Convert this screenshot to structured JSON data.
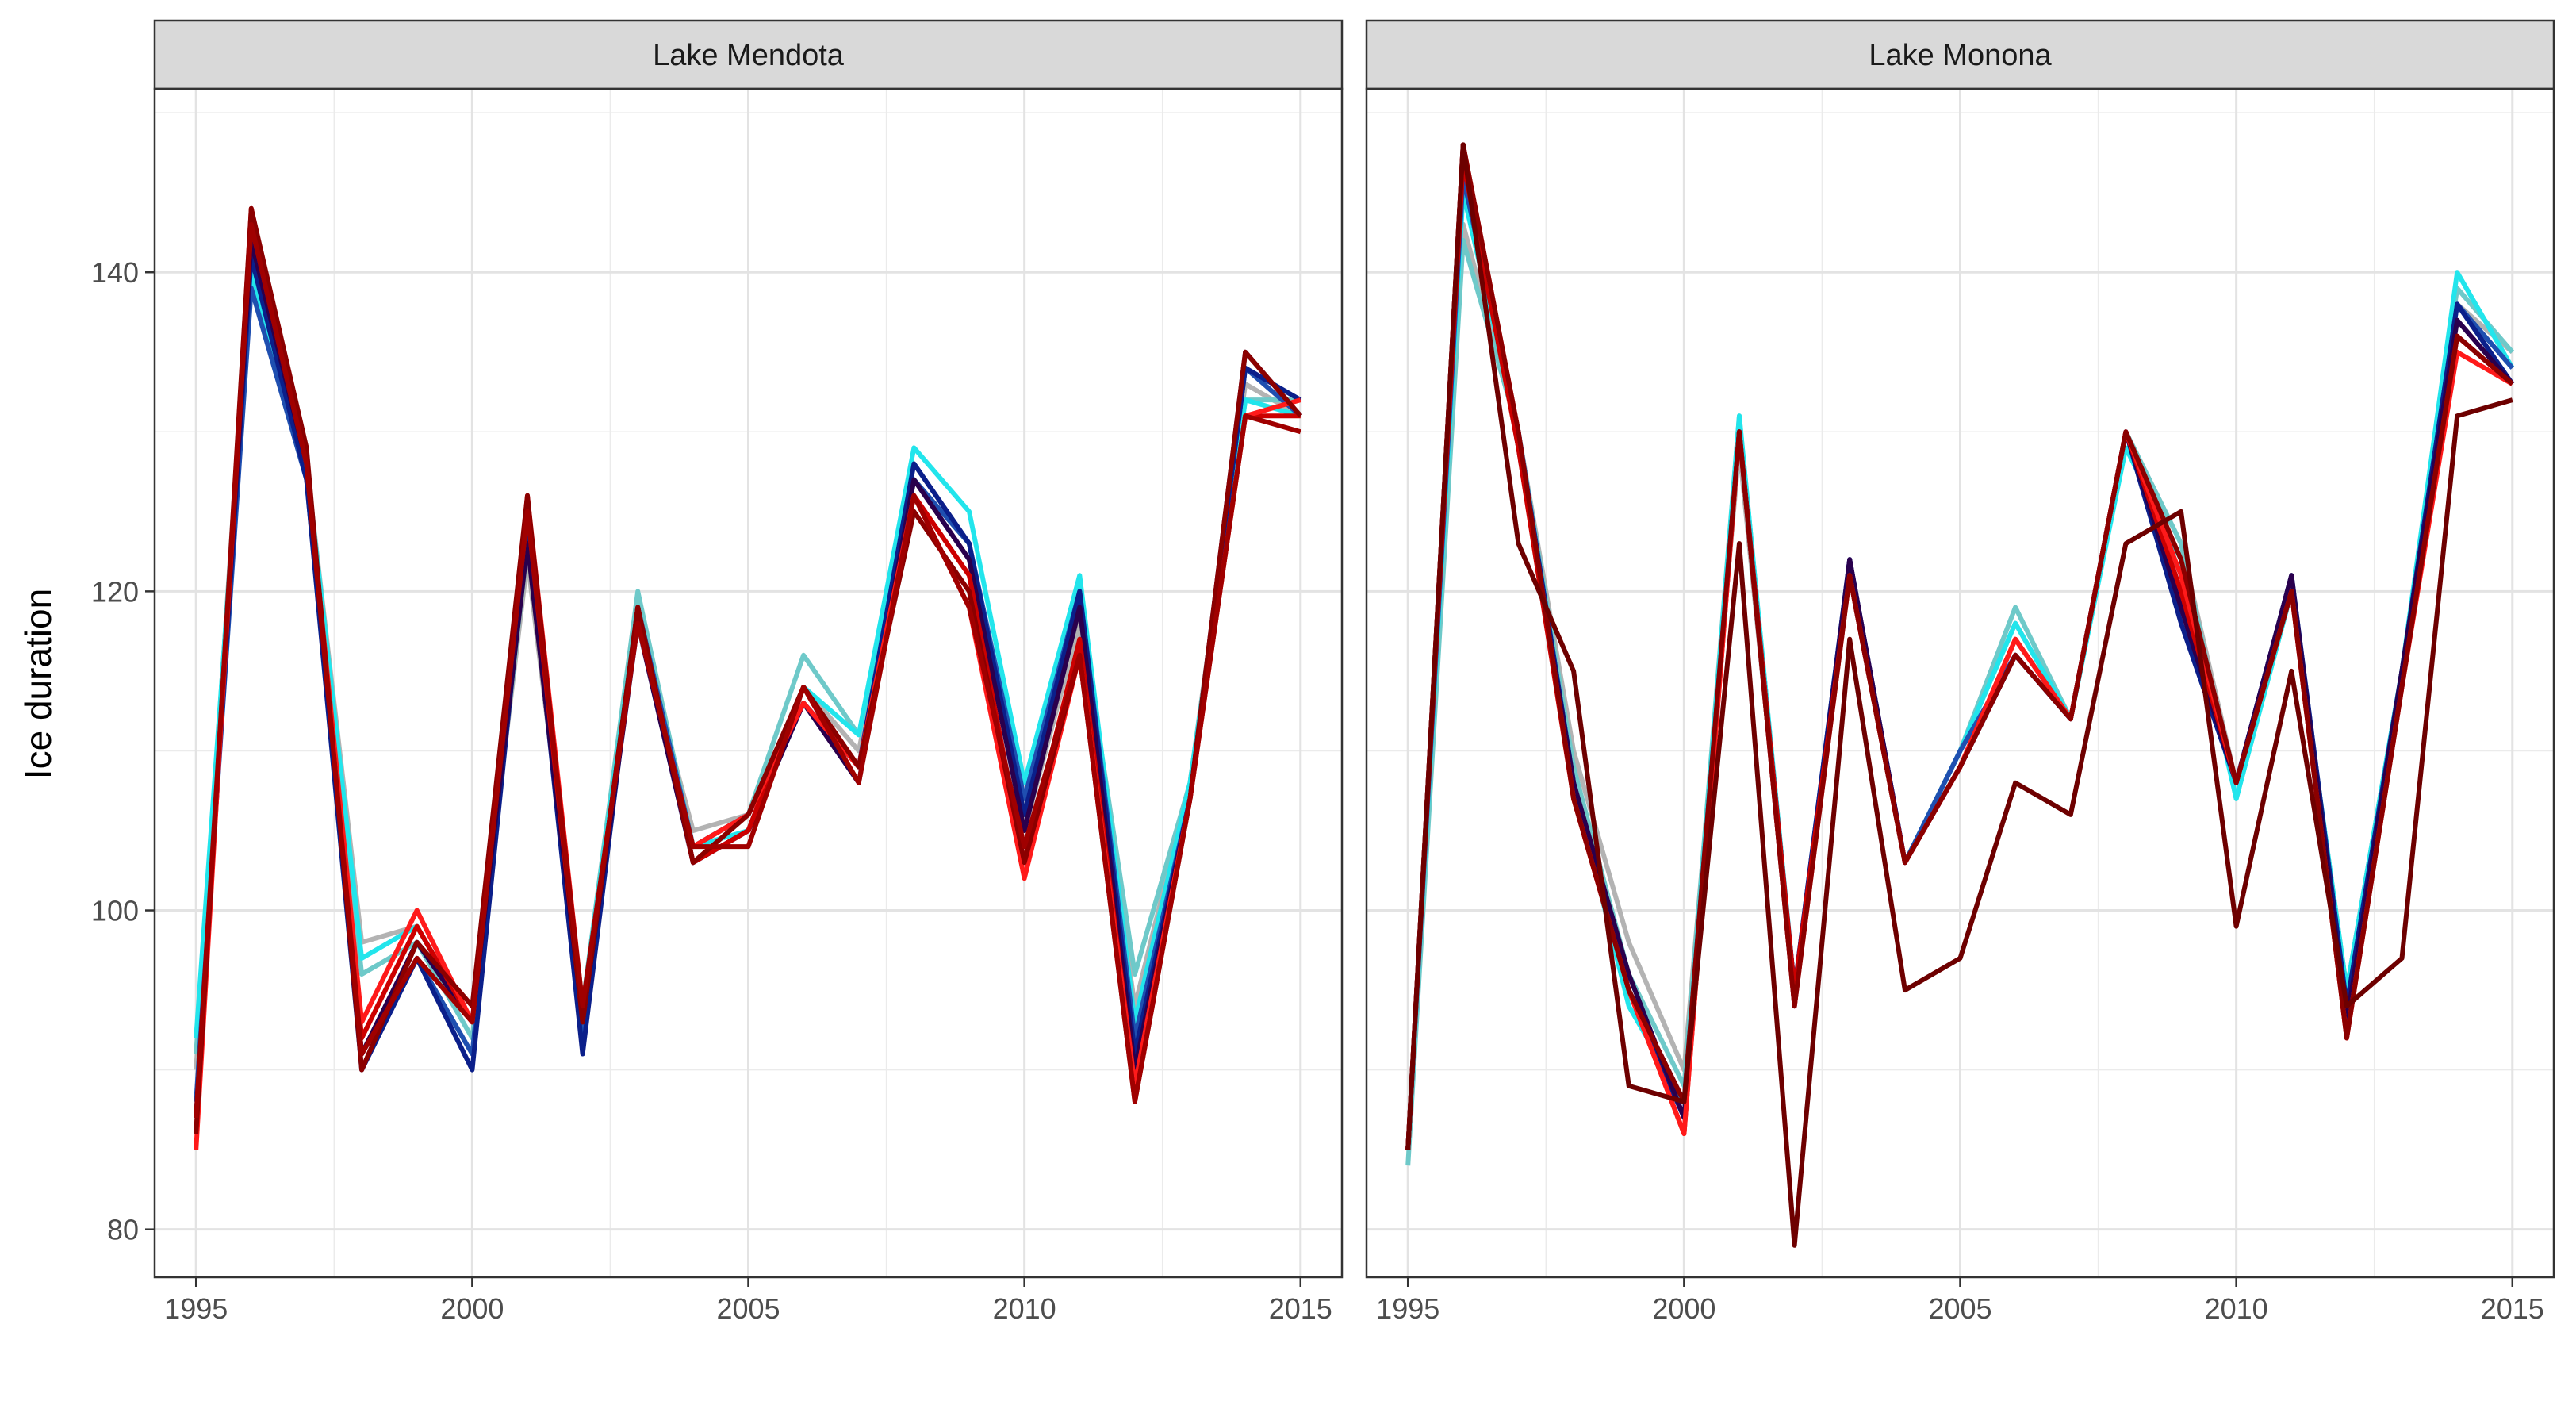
{
  "chart_data": [
    {
      "type": "line",
      "facet": "Lake Mendota",
      "ylabel": "Ice duration",
      "xlim": [
        1994.25,
        2015.75
      ],
      "ylim": [
        77.0,
        151.5
      ],
      "x_ticks": [
        1995,
        2000,
        2005,
        2010,
        2015
      ],
      "y_ticks": [
        80,
        100,
        120,
        140
      ],
      "x": [
        1995,
        1996,
        1997,
        1998,
        1999,
        2000,
        2001,
        2002,
        2003,
        2004,
        2005,
        2006,
        2007,
        2008,
        2009,
        2010,
        2011,
        2012,
        2013,
        2014,
        2015
      ],
      "series": [
        {
          "color": "#b3b3b3",
          "values": [
            90,
            142,
            128,
            98,
            99,
            93,
            122,
            94,
            118,
            105,
            106,
            114,
            110,
            127,
            122,
            105,
            118,
            94,
            108,
            133,
            131
          ]
        },
        {
          "color": "#6ec9c9",
          "values": [
            91,
            141,
            128,
            96,
            98,
            92,
            123,
            94,
            120,
            104,
            106,
            116,
            111,
            127,
            123,
            106,
            119,
            96,
            108,
            132,
            132
          ]
        },
        {
          "color": "#22e5ec",
          "values": [
            92,
            140,
            128,
            97,
            99,
            93,
            124,
            94,
            119,
            104,
            105,
            114,
            111,
            129,
            125,
            108,
            121,
            93,
            108,
            132,
            131
          ]
        },
        {
          "color": "#1f4fb0",
          "values": [
            88,
            139,
            127,
            91,
            97,
            91,
            125,
            92,
            119,
            104,
            106,
            113,
            109,
            127,
            123,
            107,
            120,
            92,
            107,
            134,
            131
          ]
        },
        {
          "color": "#0b1f8a",
          "values": [
            87,
            141,
            127,
            90,
            97,
            90,
            124,
            91,
            119,
            103,
            105,
            113,
            109,
            128,
            123,
            106,
            120,
            91,
            107,
            134,
            132
          ]
        },
        {
          "color": "#2a004d",
          "values": [
            87,
            142,
            128,
            91,
            98,
            93,
            123,
            93,
            118,
            103,
            105,
            113,
            108,
            127,
            122,
            105,
            119,
            90,
            107,
            135,
            131
          ]
        },
        {
          "color": "#cc0000",
          "values": [
            86,
            143,
            128,
            92,
            99,
            93,
            125,
            93,
            119,
            103,
            105,
            114,
            109,
            126,
            121,
            103,
            117,
            89,
            107,
            131,
            131
          ]
        },
        {
          "color": "#ff1a1a",
          "values": [
            85,
            144,
            128,
            93,
            100,
            93,
            126,
            94,
            118,
            104,
            106,
            113,
            109,
            126,
            119,
            102,
            116,
            89,
            107,
            131,
            132
          ]
        },
        {
          "color": "#8b0000",
          "values": [
            86,
            144,
            129,
            90,
            98,
            94,
            126,
            93,
            119,
            103,
            106,
            114,
            109,
            125,
            120,
            103,
            116,
            88,
            107,
            135,
            131
          ]
        },
        {
          "color": "#a00000",
          "values": [
            87,
            143,
            128,
            91,
            97,
            93,
            125,
            94,
            118,
            104,
            104,
            114,
            108,
            126,
            119,
            104,
            116,
            88,
            107,
            131,
            130
          ]
        }
      ]
    },
    {
      "type": "line",
      "facet": "Lake Monona",
      "ylabel": "Ice duration",
      "xlim": [
        1994.25,
        2015.75
      ],
      "ylim": [
        77.0,
        151.5
      ],
      "x_ticks": [
        1995,
        2000,
        2005,
        2010,
        2015
      ],
      "y_ticks": [
        80,
        100,
        120,
        140
      ],
      "x": [
        1995,
        1996,
        1997,
        1998,
        1999,
        2000,
        2001,
        2002,
        2003,
        2004,
        2005,
        2006,
        2007,
        2008,
        2009,
        2010,
        2011,
        2012,
        2013,
        2014,
        2015
      ],
      "series": [
        {
          "color": "#b3b3b3",
          "values": [
            85,
            143,
            130,
            110,
            98,
            90,
            129,
            95,
            121,
            103,
            110,
            118,
            112,
            130,
            123,
            108,
            120,
            95,
            115,
            138,
            135
          ]
        },
        {
          "color": "#6ec9c9",
          "values": [
            84,
            142,
            130,
            109,
            96,
            89,
            131,
            95,
            121,
            103,
            110,
            119,
            112,
            130,
            123,
            107,
            120,
            95,
            115,
            139,
            135
          ]
        },
        {
          "color": "#22e5ec",
          "values": [
            85,
            145,
            130,
            108,
            94,
            88,
            131,
            95,
            121,
            103,
            110,
            118,
            112,
            129,
            122,
            107,
            120,
            95,
            115,
            140,
            134
          ]
        },
        {
          "color": "#1f4fb0",
          "values": [
            85,
            146,
            130,
            108,
            95,
            88,
            130,
            95,
            122,
            103,
            110,
            116,
            112,
            130,
            120,
            108,
            121,
            94,
            115,
            138,
            134
          ]
        },
        {
          "color": "#0b1f8a",
          "values": [
            85,
            147,
            130,
            108,
            95,
            87,
            130,
            95,
            122,
            103,
            109,
            116,
            112,
            130,
            118,
            108,
            121,
            94,
            115,
            138,
            133
          ]
        },
        {
          "color": "#2a004d",
          "values": [
            85,
            148,
            129,
            108,
            96,
            87,
            130,
            94,
            122,
            103,
            109,
            116,
            112,
            130,
            119,
            108,
            121,
            93,
            115,
            137,
            133
          ]
        },
        {
          "color": "#cc0000",
          "values": [
            85,
            147,
            129,
            107,
            95,
            86,
            130,
            95,
            121,
            103,
            109,
            117,
            112,
            130,
            120,
            108,
            120,
            92,
            114,
            136,
            133
          ]
        },
        {
          "color": "#ff1a1a",
          "values": [
            85,
            148,
            130,
            107,
            95,
            86,
            130,
            94,
            121,
            103,
            109,
            117,
            112,
            130,
            121,
            108,
            120,
            92,
            114,
            135,
            133
          ]
        },
        {
          "color": "#8b0000",
          "values": [
            85,
            148,
            130,
            107,
            95,
            88,
            130,
            94,
            121,
            103,
            109,
            116,
            112,
            130,
            122,
            108,
            120,
            92,
            114,
            136,
            133
          ]
        },
        {
          "color": "#6e0000",
          "values": [
            85,
            148,
            123,
            115,
            89,
            88,
            123,
            79,
            117,
            95,
            97,
            108,
            106,
            123,
            125,
            99,
            115,
            94,
            97,
            131,
            132
          ]
        }
      ]
    }
  ]
}
